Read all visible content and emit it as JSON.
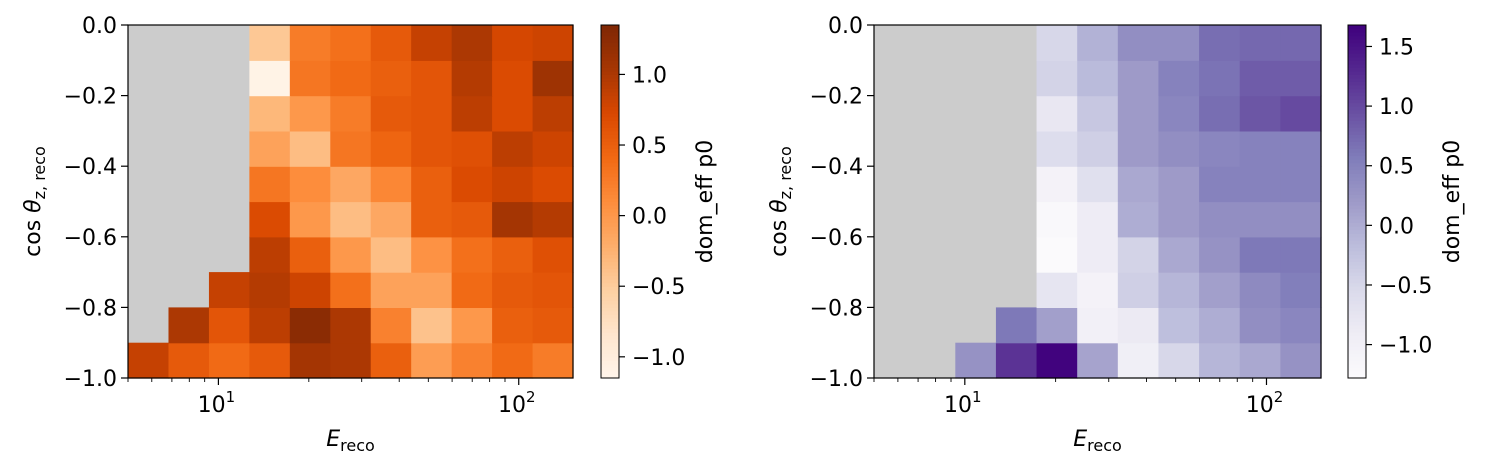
{
  "chart_data": [
    {
      "type": "heatmap",
      "colormap": "Oranges",
      "missing_color": "#cccccc",
      "x_scale": "log",
      "xlabel_main": "E",
      "xlabel_sub": "reco",
      "ylabel_main": "cos θ",
      "ylabel_sub": "z, reco",
      "x_edges": [
        5.0,
        6.82,
        9.3,
        12.68,
        17.29,
        23.58,
        32.15,
        43.84,
        59.79,
        81.53,
        111.2,
        151.6
      ],
      "y_edges": [
        -1.0,
        -0.9,
        -0.8,
        -0.7,
        -0.6,
        -0.5,
        -0.4,
        -0.3,
        -0.2,
        -0.1,
        0.0
      ],
      "xlim": [
        5.0,
        151.6
      ],
      "ylim": [
        -1.0,
        0.0
      ],
      "x_ticks": [
        {
          "value": 10,
          "base": "10",
          "exp": "1"
        },
        {
          "value": 100,
          "base": "10",
          "exp": "2"
        }
      ],
      "y_ticks": [
        {
          "value": -1.0,
          "label": "−1.0"
        },
        {
          "value": -0.8,
          "label": "−0.8"
        },
        {
          "value": -0.6,
          "label": "−0.6"
        },
        {
          "value": -0.4,
          "label": "−0.4"
        },
        {
          "value": -0.2,
          "label": "−0.2"
        },
        {
          "value": 0.0,
          "label": "0.0"
        }
      ],
      "values": [
        [
          0.85,
          0.55,
          0.4,
          0.55,
          1.05,
          1.0,
          0.5,
          -0.05,
          0.2,
          0.4,
          0.25,
          0.7
        ],
        [
          null,
          1.0,
          0.6,
          0.9,
          1.25,
          1.0,
          0.2,
          -0.4,
          0.0,
          0.5,
          0.55,
          0.6
        ],
        [
          null,
          null,
          0.85,
          0.95,
          0.8,
          0.35,
          -0.1,
          -0.1,
          0.4,
          0.55,
          0.6,
          0.4
        ],
        [
          null,
          null,
          null,
          0.9,
          0.5,
          0.0,
          -0.35,
          0.05,
          0.35,
          0.5,
          0.65,
          0.8
        ],
        [
          null,
          null,
          null,
          0.7,
          0.0,
          -0.35,
          -0.15,
          0.5,
          0.55,
          1.05,
          0.95,
          0.95
        ],
        [
          null,
          null,
          null,
          0.3,
          0.1,
          -0.15,
          0.15,
          0.5,
          0.7,
          0.8,
          0.7,
          0.9
        ],
        [
          null,
          null,
          null,
          -0.1,
          -0.35,
          0.3,
          0.45,
          0.6,
          0.65,
          0.9,
          0.8,
          1.3
        ],
        [
          null,
          null,
          null,
          -0.3,
          0.0,
          0.25,
          0.55,
          0.6,
          0.9,
          0.7,
          0.9,
          1.15
        ],
        [
          null,
          null,
          null,
          -1.1,
          0.3,
          0.4,
          0.5,
          0.6,
          0.95,
          0.7,
          1.1,
          0.75
        ],
        [
          null,
          null,
          null,
          -0.45,
          0.25,
          0.35,
          0.55,
          0.85,
          1.0,
          0.75,
          0.8,
          1.3
        ]
      ],
      "colorbar": {
        "vmin": -1.15,
        "vmax": 1.35,
        "label": "dom_eff p0",
        "ticks": [
          {
            "value": -1.0,
            "label": "−1.0"
          },
          {
            "value": -0.5,
            "label": "−0.5"
          },
          {
            "value": 0.0,
            "label": "0.0"
          },
          {
            "value": 0.5,
            "label": "0.5"
          },
          {
            "value": 1.0,
            "label": "1.0"
          }
        ]
      }
    },
    {
      "type": "heatmap",
      "colormap": "Purples",
      "missing_color": "#cccccc",
      "x_scale": "log",
      "xlabel_main": "E",
      "xlabel_sub": "reco",
      "ylabel_main": "cos θ",
      "ylabel_sub": "z, reco",
      "x_edges": [
        5.0,
        6.82,
        9.3,
        12.68,
        17.29,
        23.58,
        32.15,
        43.84,
        59.79,
        81.53,
        111.2,
        151.6
      ],
      "y_edges": [
        -1.0,
        -0.9,
        -0.8,
        -0.7,
        -0.6,
        -0.5,
        -0.4,
        -0.3,
        -0.2,
        -0.1,
        0.0
      ],
      "xlim": [
        5.0,
        151.6
      ],
      "ylim": [
        -1.0,
        0.0
      ],
      "x_ticks": [
        {
          "value": 10,
          "base": "10",
          "exp": "1"
        },
        {
          "value": 100,
          "base": "10",
          "exp": "2"
        }
      ],
      "y_ticks": [
        {
          "value": -1.0,
          "label": "−1.0"
        },
        {
          "value": -0.8,
          "label": "−0.8"
        },
        {
          "value": -0.6,
          "label": "−0.6"
        },
        {
          "value": -0.4,
          "label": "−0.4"
        },
        {
          "value": -0.2,
          "label": "−0.2"
        },
        {
          "value": 0.0,
          "label": "0.0"
        }
      ],
      "values": [
        [
          null,
          null,
          0.3,
          1.2,
          1.65,
          0.1,
          -0.95,
          -0.5,
          -0.1,
          0.05,
          0.3,
          0.45
        ],
        [
          null,
          null,
          null,
          0.6,
          0.15,
          -1.0,
          -0.85,
          -0.2,
          0.0,
          0.35,
          0.45,
          0.55
        ],
        [
          null,
          null,
          null,
          null,
          -0.75,
          -1.05,
          -0.4,
          -0.1,
          0.15,
          0.4,
          0.55,
          0.55
        ],
        [
          null,
          null,
          null,
          null,
          -1.25,
          -0.9,
          -0.45,
          0.05,
          0.3,
          0.6,
          0.6,
          0.5
        ],
        [
          null,
          null,
          null,
          null,
          -1.2,
          -0.9,
          0.0,
          0.2,
          0.35,
          0.35,
          0.35,
          0.35
        ],
        [
          null,
          null,
          null,
          null,
          -1.05,
          -0.65,
          0.05,
          0.2,
          0.5,
          0.5,
          0.5,
          0.85
        ],
        [
          null,
          null,
          null,
          null,
          -0.6,
          -0.4,
          0.2,
          0.35,
          0.45,
          0.5,
          0.5,
          0.5
        ],
        [
          null,
          null,
          null,
          null,
          -0.8,
          -0.3,
          0.2,
          0.45,
          0.7,
          0.9,
          1.0,
          0.55
        ],
        [
          null,
          null,
          null,
          null,
          -0.45,
          -0.15,
          0.2,
          0.5,
          0.65,
          0.85,
          0.85,
          0.7
        ],
        [
          null,
          null,
          null,
          null,
          -0.5,
          -0.05,
          0.35,
          0.35,
          0.7,
          0.75,
          0.75,
          0.55
        ]
      ],
      "colorbar": {
        "vmin": -1.28,
        "vmax": 1.68,
        "label": "dom_eff p0",
        "ticks": [
          {
            "value": -1.0,
            "label": "−1.0"
          },
          {
            "value": -0.5,
            "label": "−0.5"
          },
          {
            "value": 0.0,
            "label": "0.0"
          },
          {
            "value": 0.5,
            "label": "0.5"
          },
          {
            "value": 1.0,
            "label": "1.0"
          },
          {
            "value": 1.5,
            "label": "1.5"
          }
        ]
      }
    }
  ]
}
